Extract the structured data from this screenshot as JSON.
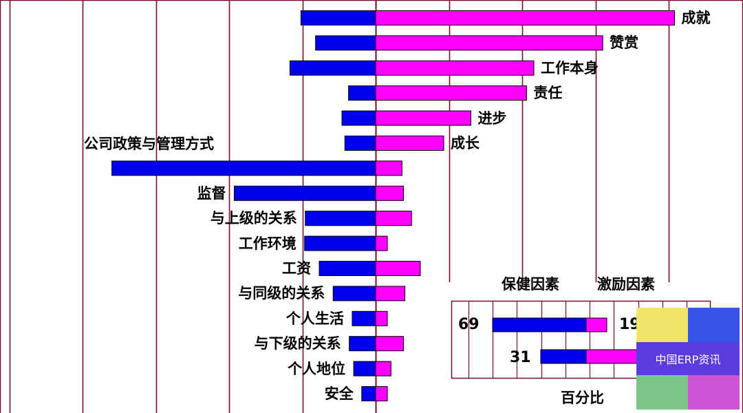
{
  "colors": {
    "background": "#ffffff",
    "gridline": "#7a0a2a",
    "hygiene": "#0000ee",
    "motivator": "#ff00ff",
    "bar_outline": "#000000",
    "logo_yellow": "#f2e56a",
    "logo_blue": "#3a54e8",
    "logo_purple": "#5b3ce0",
    "logo_green": "#7cc68a",
    "logo_magenta": "#cc55d6"
  },
  "chart_data": [
    {
      "type": "bar",
      "orientation": "horizontal-diverging",
      "title": "",
      "xlabel": "",
      "ylabel": "",
      "categories": [
        "成就",
        "赞赏",
        "工作本身",
        "责任",
        "进步",
        "成长",
        "公司政策与管理方式",
        "监督",
        "与上级的关系",
        "工作环境",
        "工资",
        "与同级的关系",
        "个人生活",
        "与下级的关系",
        "个人地位",
        "安全"
      ],
      "series": [
        {
          "color": "#0000ee",
          "side": "left",
          "values": [
            10.2,
            8.2,
            11.7,
            3.7,
            4.6,
            4.2,
            36.0,
            19.3,
            9.6,
            9.7,
            7.7,
            5.8,
            3.2,
            3.6,
            3.0,
            1.9
          ]
        },
        {
          "color": "#ff00ff",
          "side": "right",
          "values": [
            40.8,
            31.0,
            21.6,
            20.6,
            13.0,
            9.3,
            3.6,
            3.8,
            4.9,
            1.6,
            6.1,
            4.0,
            1.6,
            3.8,
            2.1,
            1.6
          ]
        }
      ],
      "xlim": [
        -50,
        50
      ],
      "gridlines_at": [
        -50,
        -40,
        -30,
        -20,
        -10,
        0,
        10,
        20,
        30,
        40
      ],
      "grid": true,
      "label_placement": "motivators labelled right of magenta bars, hygiene factors labelled left of blue bars"
    },
    {
      "type": "bar",
      "orientation": "horizontal-stacked",
      "title": "",
      "xlabel": "百分比",
      "legend": [
        "保健因素",
        "激励因素"
      ],
      "rows": [
        {
          "hygiene": 69,
          "motivator": 19
        },
        {
          "hygiene": 31,
          "motivator": 81
        }
      ],
      "xlim": [
        0,
        100
      ],
      "grid": true
    }
  ],
  "inset": {
    "legend_hygiene": "保健因素",
    "legend_motivator": "激励因素",
    "xlabel": "百分比",
    "row1_left": "69",
    "row1_right": "19",
    "row2_left": "31"
  },
  "watermark": {
    "text": "中国ERP资讯"
  }
}
